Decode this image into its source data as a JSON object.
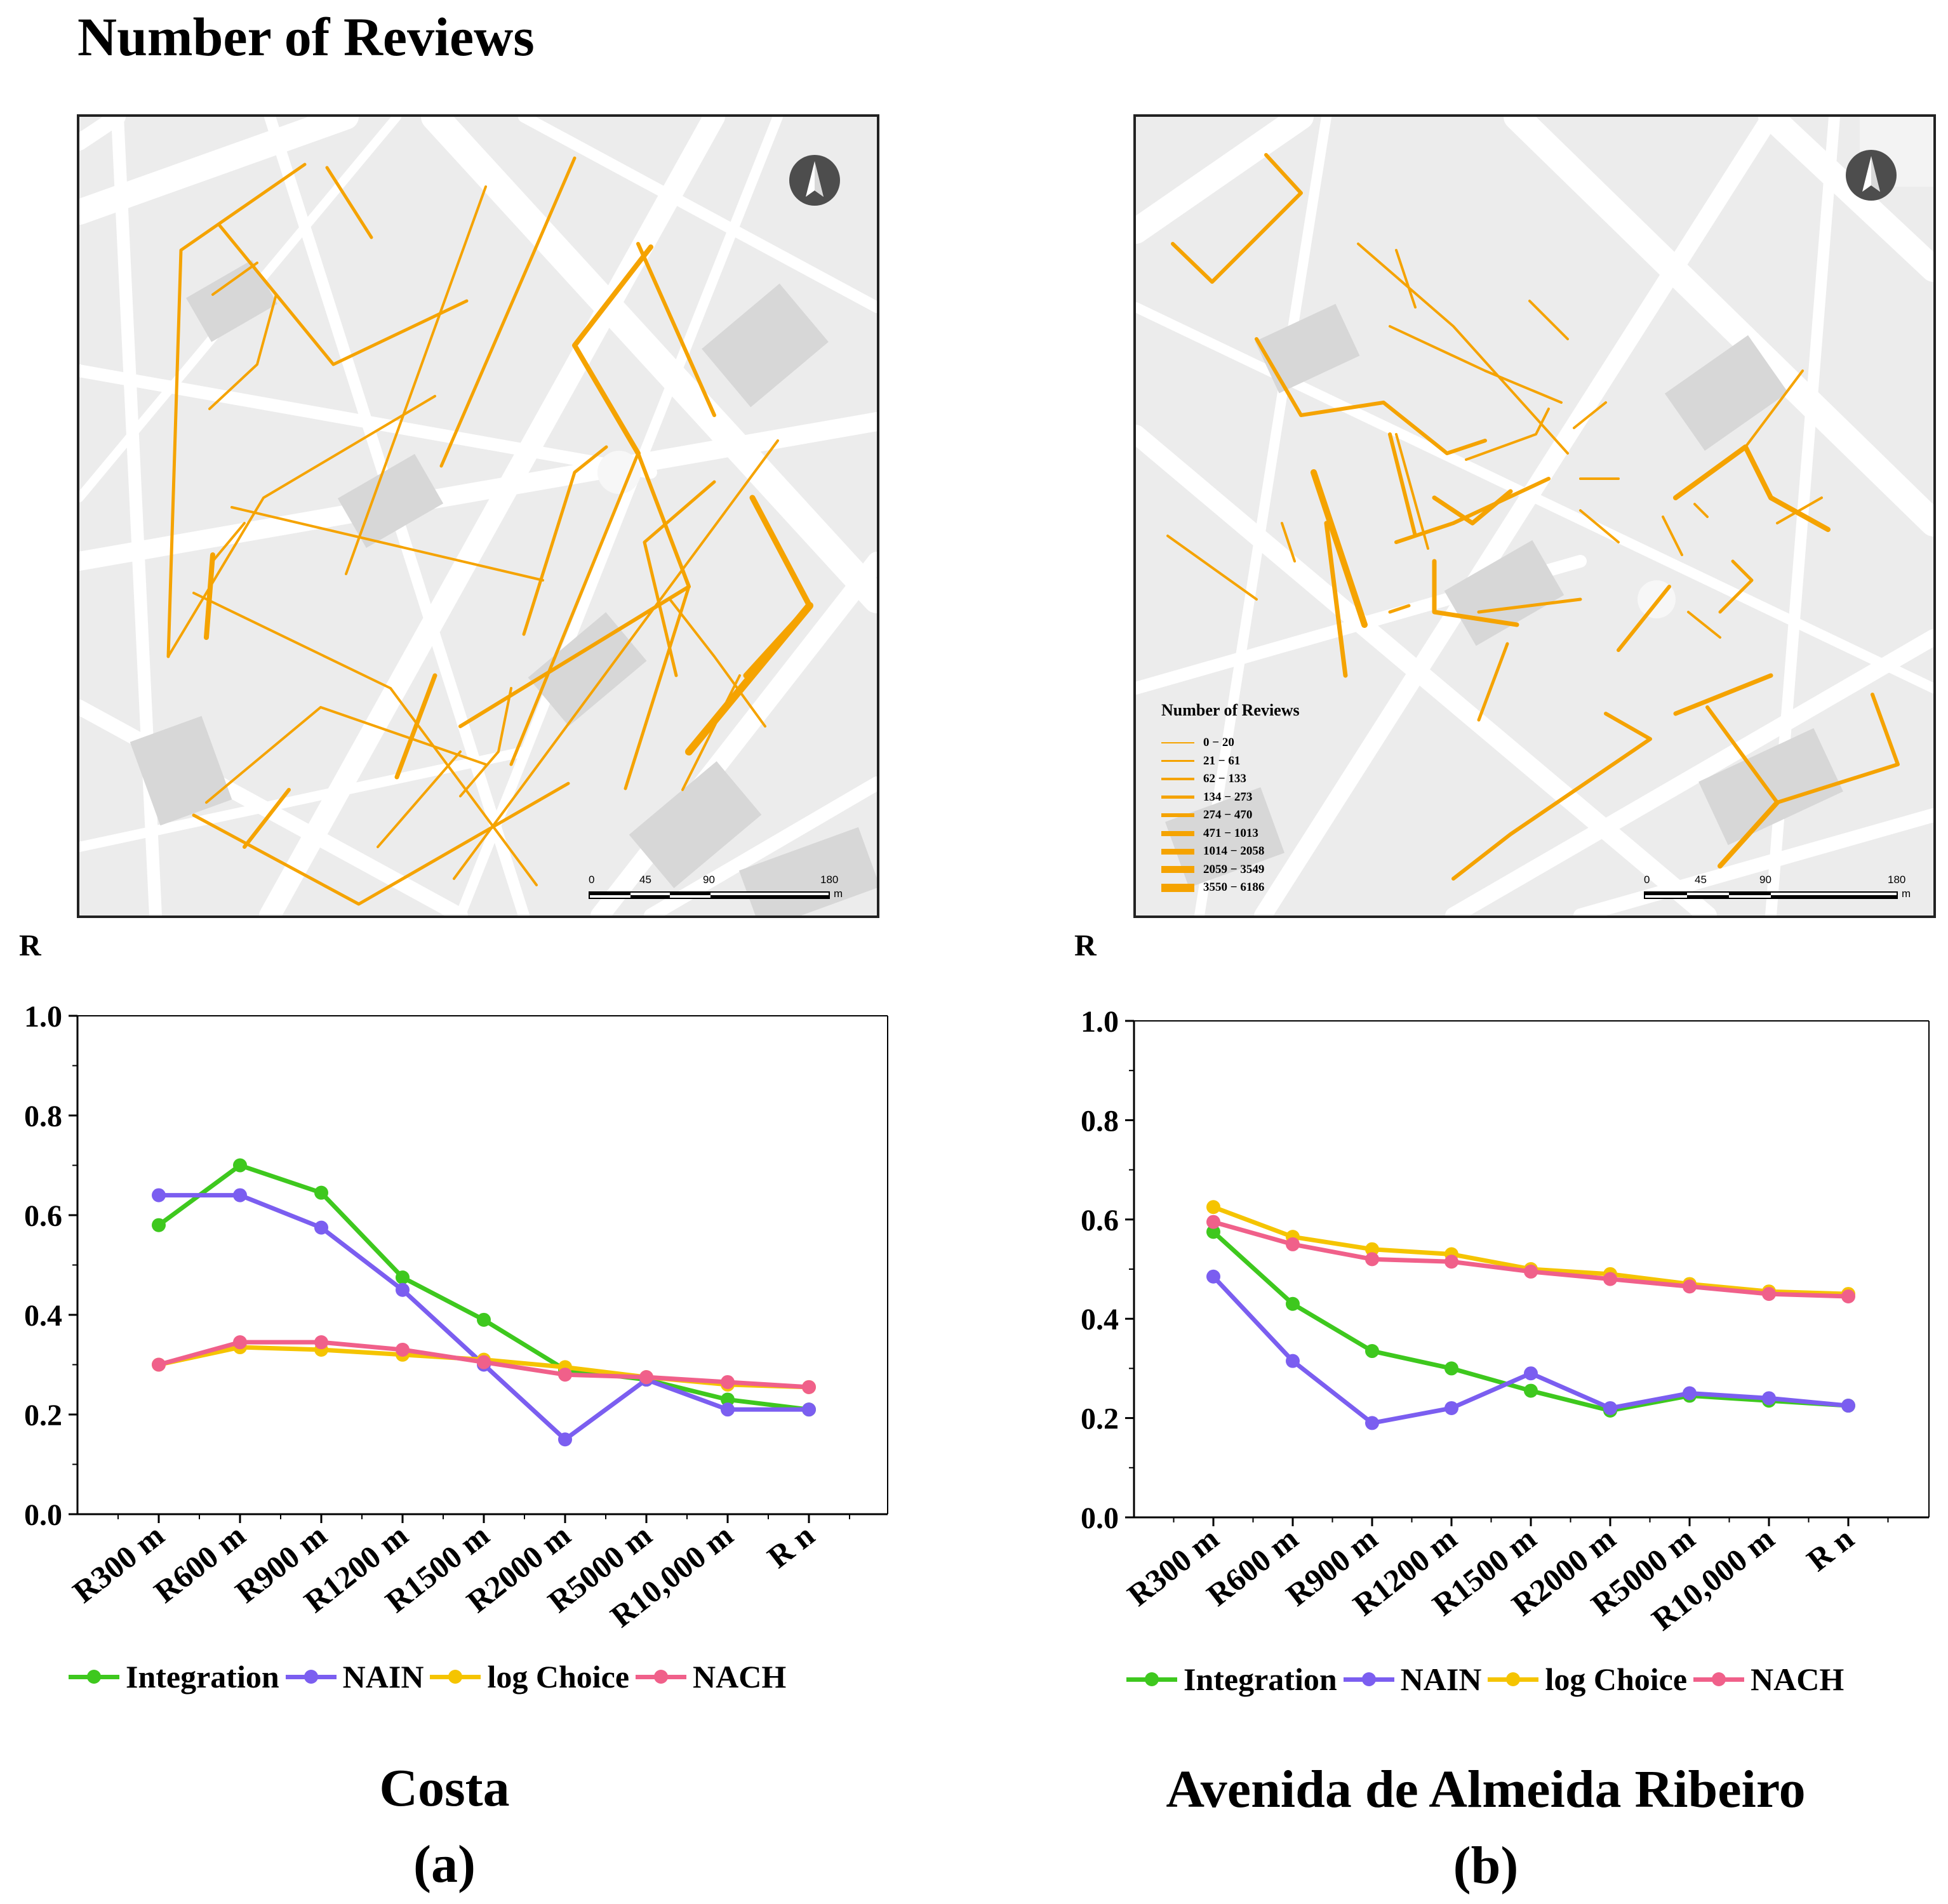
{
  "figure_title": "Number of Reviews",
  "colors": {
    "integration": "#3ec81e",
    "nain": "#7b5ef0",
    "log_choice": "#f5c400",
    "nach": "#f0608a",
    "street": "#f5a300",
    "map_bg": "#ececec"
  },
  "maps": [
    {
      "id": "a",
      "north_icon": "north-arrow-icon",
      "scale": {
        "ticks": [
          "0",
          "45",
          "90",
          "180"
        ],
        "unit": "m"
      }
    },
    {
      "id": "b",
      "north_icon": "north-arrow-icon",
      "scale": {
        "ticks": [
          "0",
          "45",
          "90",
          "180"
        ],
        "unit": "m"
      },
      "legend": {
        "title": "Number of Reviews",
        "classes": [
          "0 − 20",
          "21 − 61",
          "62 − 133",
          "134 − 273",
          "274 − 470",
          "471 − 1013",
          "1014 − 2058",
          "2059 − 3549",
          "3550 − 6186"
        ]
      }
    }
  ],
  "chart_data": [
    {
      "type": "line",
      "panel": "(a)",
      "title": "Costa",
      "ylabel": "R",
      "ylim": [
        0.0,
        1.0
      ],
      "yticks": [
        "0.0",
        "0.2",
        "0.4",
        "0.6",
        "0.8",
        "1.0"
      ],
      "categories": [
        "R300 m",
        "R600 m",
        "R900 m",
        "R1200 m",
        "R1500 m",
        "R2000 m",
        "R5000 m",
        "R10,000 m",
        "R n"
      ],
      "series": [
        {
          "name": "Integration",
          "color_key": "integration",
          "values": [
            0.58,
            0.7,
            0.645,
            0.475,
            0.39,
            0.29,
            0.27,
            0.23,
            0.21
          ]
        },
        {
          "name": "NAIN",
          "color_key": "nain",
          "values": [
            0.64,
            0.64,
            0.575,
            0.45,
            0.3,
            0.15,
            0.27,
            0.21,
            0.21
          ]
        },
        {
          "name": "log Choice",
          "color_key": "log_choice",
          "values": [
            0.3,
            0.335,
            0.33,
            0.32,
            0.31,
            0.295,
            0.275,
            0.26,
            0.255
          ]
        },
        {
          "name": "NACH",
          "color_key": "nach",
          "values": [
            0.3,
            0.345,
            0.345,
            0.33,
            0.305,
            0.28,
            0.275,
            0.265,
            0.255
          ]
        }
      ]
    },
    {
      "type": "line",
      "panel": "(b)",
      "title": "Avenida de Almeida Ribeiro",
      "ylabel": "R",
      "ylim": [
        0.0,
        1.0
      ],
      "yticks": [
        "0.0",
        "0.2",
        "0.4",
        "0.6",
        "0.8",
        "1.0"
      ],
      "categories": [
        "R300 m",
        "R600 m",
        "R900 m",
        "R1200 m",
        "R1500 m",
        "R2000 m",
        "R5000 m",
        "R10,000 m",
        "R n"
      ],
      "series": [
        {
          "name": "Integration",
          "color_key": "integration",
          "values": [
            0.575,
            0.43,
            0.335,
            0.3,
            0.255,
            0.215,
            0.245,
            0.235,
            0.225
          ]
        },
        {
          "name": "NAIN",
          "color_key": "nain",
          "values": [
            0.485,
            0.315,
            0.19,
            0.22,
            0.29,
            0.22,
            0.25,
            0.24,
            0.225
          ]
        },
        {
          "name": "log Choice",
          "color_key": "log_choice",
          "values": [
            0.625,
            0.565,
            0.54,
            0.53,
            0.5,
            0.49,
            0.47,
            0.455,
            0.45
          ]
        },
        {
          "name": "NACH",
          "color_key": "nach",
          "values": [
            0.595,
            0.55,
            0.52,
            0.515,
            0.495,
            0.48,
            0.465,
            0.45,
            0.445
          ]
        }
      ]
    }
  ]
}
